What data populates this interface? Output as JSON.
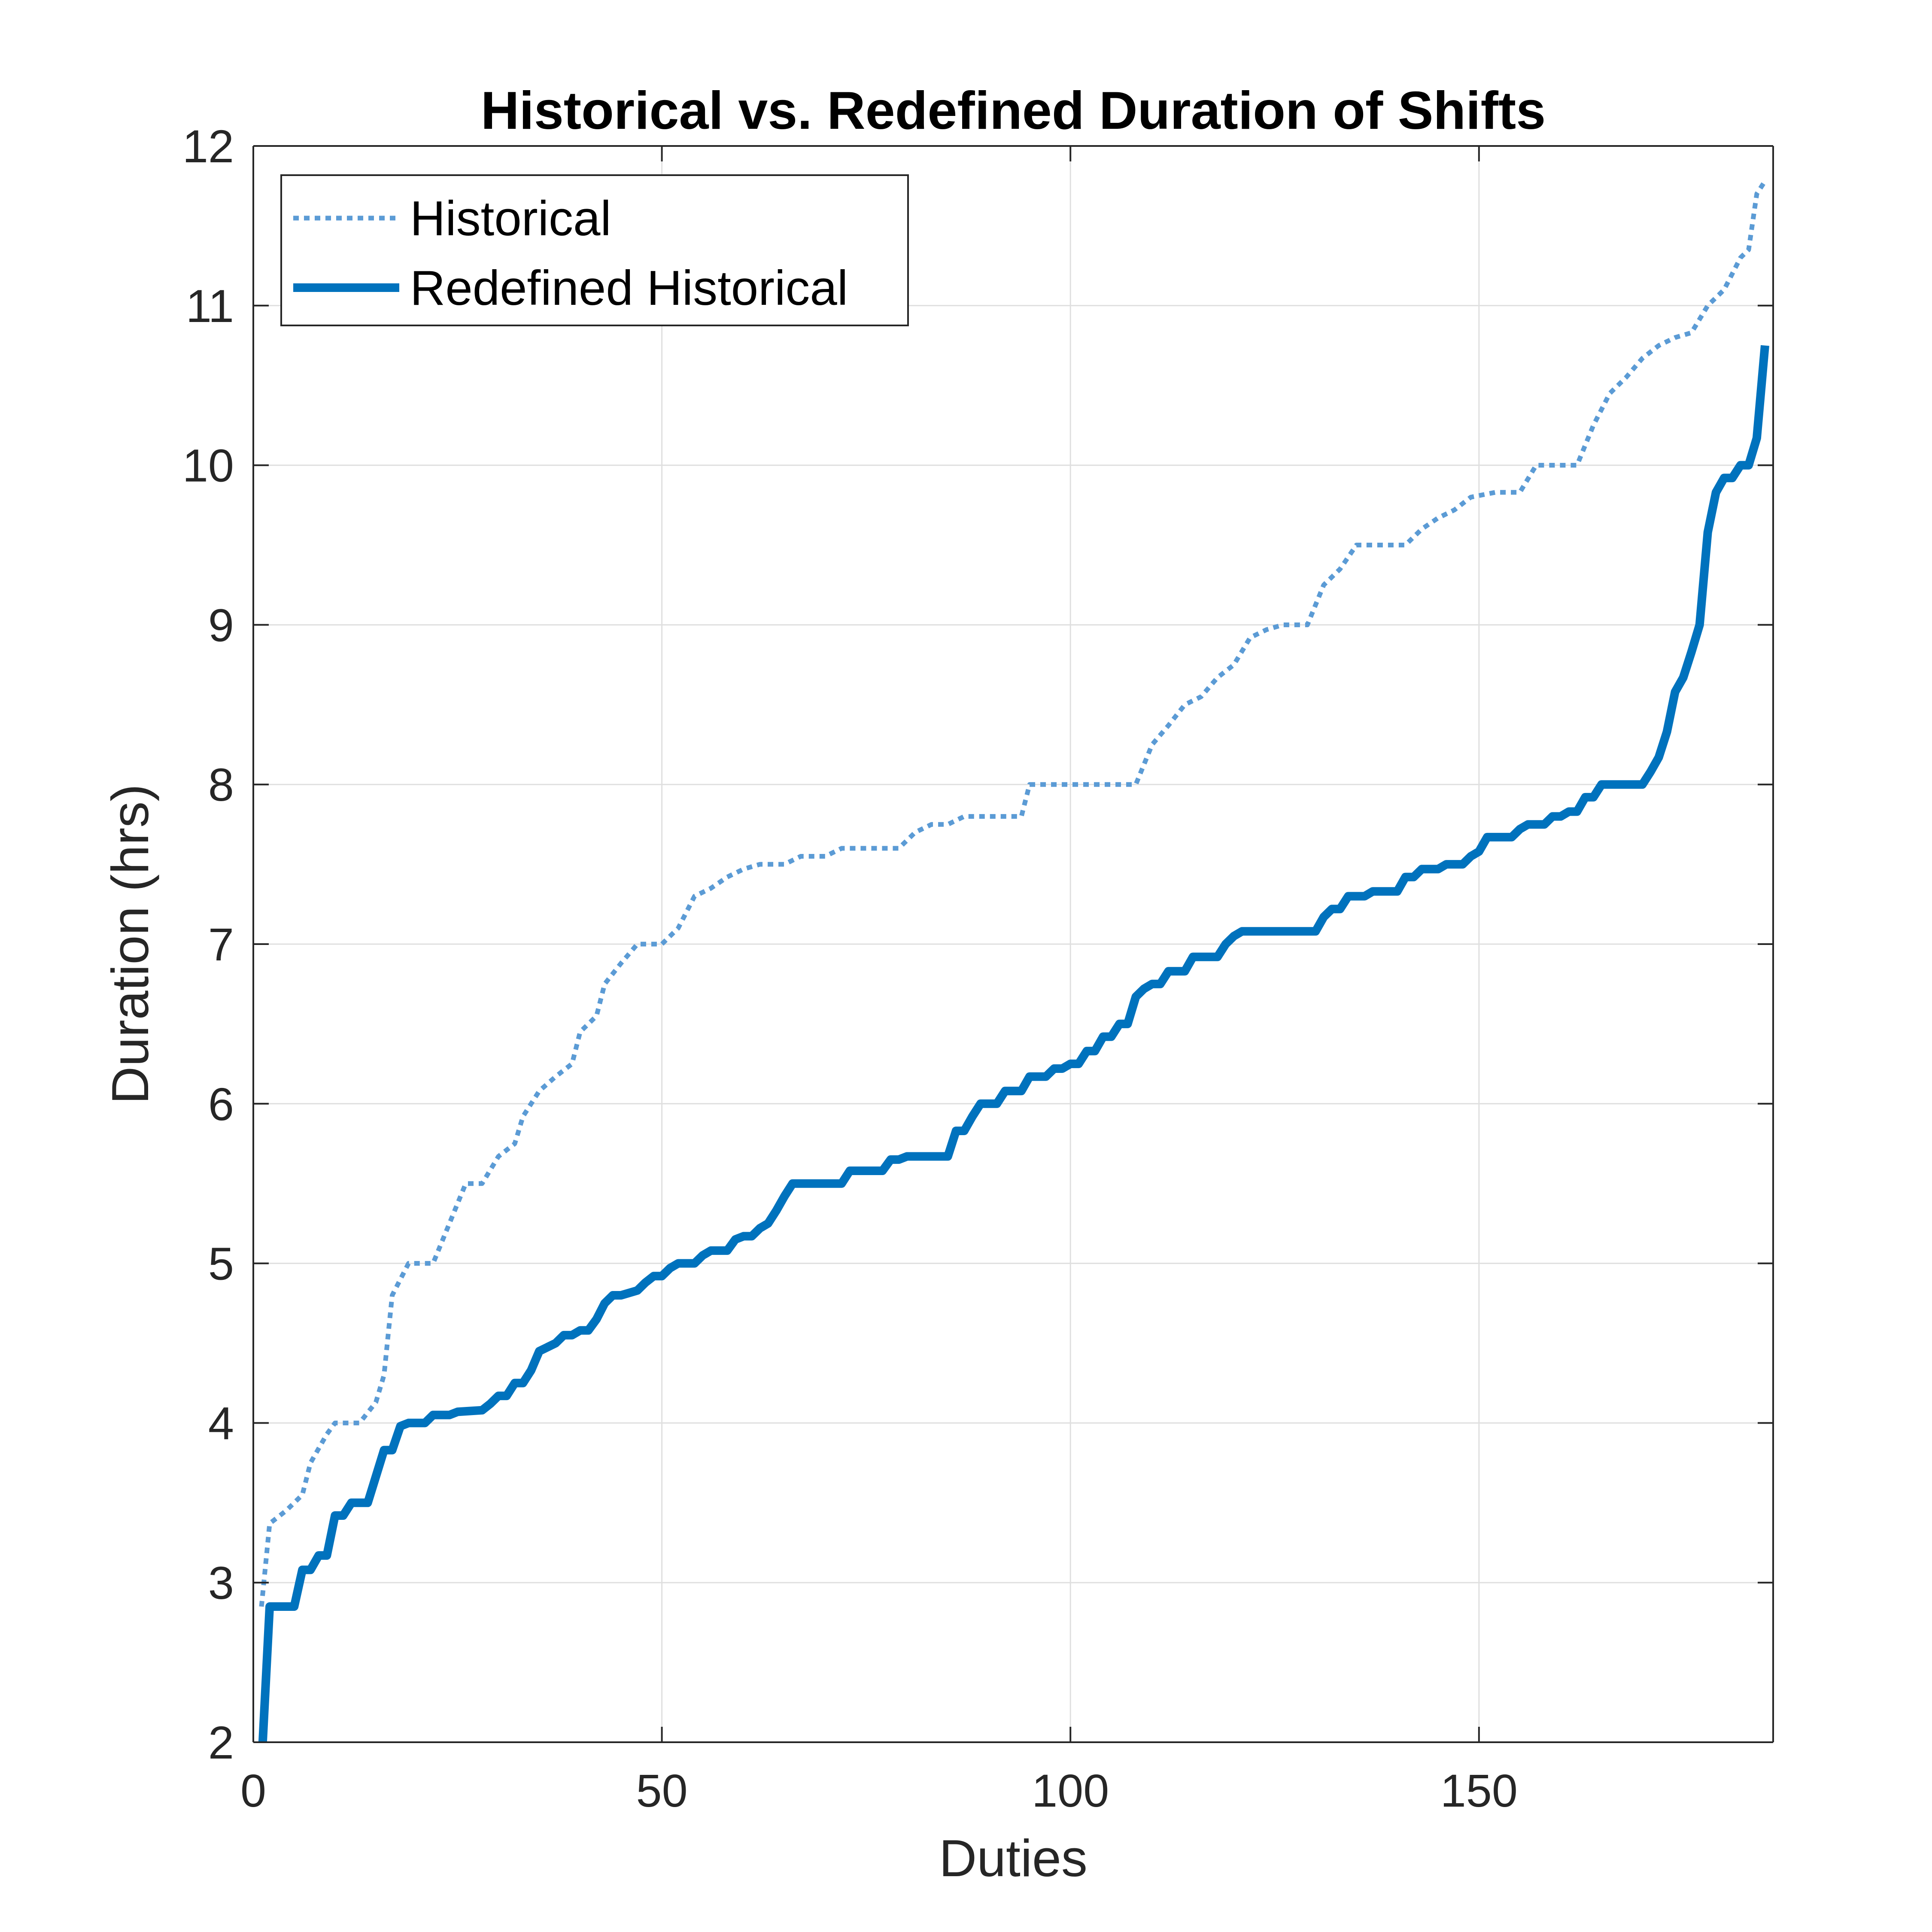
{
  "chart_data": {
    "type": "line",
    "title": "Historical vs. Redefined Duration of Shifts",
    "xlabel": "Duties",
    "ylabel": "Duration (hrs)",
    "xlim": [
      0,
      186
    ],
    "ylim": [
      2,
      12
    ],
    "xticks": [
      0,
      50,
      100,
      150
    ],
    "yticks": [
      2,
      3,
      4,
      5,
      6,
      7,
      8,
      9,
      10,
      11,
      12
    ],
    "grid": true,
    "legend_position": "top-left",
    "series": [
      {
        "name": "Historical",
        "color": "#5b9bd5",
        "style": "dotted",
        "points": [
          [
            1,
            2.85
          ],
          [
            2,
            3.37
          ],
          [
            4,
            3.45
          ],
          [
            6,
            3.55
          ],
          [
            7,
            3.75
          ],
          [
            9,
            3.93
          ],
          [
            10,
            4.0
          ],
          [
            13,
            4.0
          ],
          [
            15,
            4.13
          ],
          [
            16,
            4.3
          ],
          [
            17,
            4.8
          ],
          [
            19,
            5.0
          ],
          [
            22,
            5.0
          ],
          [
            24,
            5.25
          ],
          [
            26,
            5.5
          ],
          [
            28,
            5.5
          ],
          [
            30,
            5.67
          ],
          [
            32,
            5.75
          ],
          [
            33,
            5.92
          ],
          [
            35,
            6.08
          ],
          [
            37,
            6.17
          ],
          [
            39,
            6.25
          ],
          [
            40,
            6.45
          ],
          [
            42,
            6.55
          ],
          [
            43,
            6.75
          ],
          [
            45,
            6.88
          ],
          [
            47,
            7.0
          ],
          [
            50,
            7.0
          ],
          [
            52,
            7.1
          ],
          [
            54,
            7.3
          ],
          [
            56,
            7.35
          ],
          [
            58,
            7.42
          ],
          [
            60,
            7.47
          ],
          [
            62,
            7.5
          ],
          [
            65,
            7.5
          ],
          [
            67,
            7.55
          ],
          [
            70,
            7.55
          ],
          [
            72,
            7.6
          ],
          [
            79,
            7.6
          ],
          [
            81,
            7.7
          ],
          [
            83,
            7.75
          ],
          [
            85,
            7.75
          ],
          [
            87,
            7.8
          ],
          [
            94,
            7.8
          ],
          [
            95,
            8.0
          ],
          [
            108,
            8.0
          ],
          [
            110,
            8.25
          ],
          [
            112,
            8.37
          ],
          [
            114,
            8.5
          ],
          [
            116,
            8.55
          ],
          [
            118,
            8.67
          ],
          [
            120,
            8.75
          ],
          [
            122,
            8.92
          ],
          [
            124,
            8.97
          ],
          [
            126,
            9.0
          ],
          [
            129,
            9.0
          ],
          [
            131,
            9.25
          ],
          [
            133,
            9.35
          ],
          [
            135,
            9.5
          ],
          [
            141,
            9.5
          ],
          [
            143,
            9.6
          ],
          [
            145,
            9.67
          ],
          [
            147,
            9.72
          ],
          [
            149,
            9.8
          ],
          [
            152,
            9.83
          ],
          [
            155,
            9.83
          ],
          [
            157,
            10.0
          ],
          [
            162,
            10.0
          ],
          [
            164,
            10.25
          ],
          [
            166,
            10.45
          ],
          [
            168,
            10.55
          ],
          [
            170,
            10.67
          ],
          [
            172,
            10.75
          ],
          [
            174,
            10.8
          ],
          [
            176,
            10.83
          ],
          [
            178,
            11.0
          ],
          [
            180,
            11.1
          ],
          [
            182,
            11.3
          ],
          [
            183,
            11.35
          ],
          [
            184,
            11.7
          ],
          [
            185,
            11.78
          ]
        ]
      },
      {
        "name": "Redefined Historical",
        "color": "#0072bd",
        "style": "solid",
        "points": [
          [
            1,
            1.85
          ],
          [
            2,
            2.85
          ],
          [
            5,
            2.85
          ],
          [
            6,
            3.08
          ],
          [
            7,
            3.08
          ],
          [
            8,
            3.17
          ],
          [
            9,
            3.17
          ],
          [
            10,
            3.42
          ],
          [
            11,
            3.42
          ],
          [
            12,
            3.5
          ],
          [
            14,
            3.5
          ],
          [
            16,
            3.83
          ],
          [
            17,
            3.83
          ],
          [
            18,
            3.98
          ],
          [
            19,
            4.0
          ],
          [
            21,
            4.0
          ],
          [
            22,
            4.05
          ],
          [
            24,
            4.05
          ],
          [
            25,
            4.07
          ],
          [
            28,
            4.08
          ],
          [
            29,
            4.12
          ],
          [
            30,
            4.17
          ],
          [
            31,
            4.17
          ],
          [
            32,
            4.25
          ],
          [
            33,
            4.25
          ],
          [
            34,
            4.33
          ],
          [
            35,
            4.45
          ],
          [
            37,
            4.5
          ],
          [
            38,
            4.55
          ],
          [
            39,
            4.55
          ],
          [
            40,
            4.58
          ],
          [
            41,
            4.58
          ],
          [
            42,
            4.65
          ],
          [
            43,
            4.75
          ],
          [
            44,
            4.8
          ],
          [
            45,
            4.8
          ],
          [
            47,
            4.83
          ],
          [
            48,
            4.88
          ],
          [
            49,
            4.92
          ],
          [
            50,
            4.92
          ],
          [
            51,
            4.97
          ],
          [
            52,
            5.0
          ],
          [
            54,
            5.0
          ],
          [
            55,
            5.05
          ],
          [
            56,
            5.08
          ],
          [
            58,
            5.08
          ],
          [
            59,
            5.15
          ],
          [
            60,
            5.17
          ],
          [
            61,
            5.17
          ],
          [
            62,
            5.22
          ],
          [
            63,
            5.25
          ],
          [
            64,
            5.33
          ],
          [
            65,
            5.42
          ],
          [
            66,
            5.5
          ],
          [
            72,
            5.5
          ],
          [
            73,
            5.58
          ],
          [
            77,
            5.58
          ],
          [
            78,
            5.65
          ],
          [
            79,
            5.65
          ],
          [
            80,
            5.67
          ],
          [
            85,
            5.67
          ],
          [
            86,
            5.83
          ],
          [
            87,
            5.83
          ],
          [
            88,
            5.92
          ],
          [
            89,
            6.0
          ],
          [
            91,
            6.0
          ],
          [
            92,
            6.08
          ],
          [
            94,
            6.08
          ],
          [
            95,
            6.17
          ],
          [
            97,
            6.17
          ],
          [
            98,
            6.22
          ],
          [
            99,
            6.22
          ],
          [
            100,
            6.25
          ],
          [
            101,
            6.25
          ],
          [
            102,
            6.33
          ],
          [
            103,
            6.33
          ],
          [
            104,
            6.42
          ],
          [
            105,
            6.42
          ],
          [
            106,
            6.5
          ],
          [
            107,
            6.5
          ],
          [
            108,
            6.67
          ],
          [
            109,
            6.72
          ],
          [
            110,
            6.75
          ],
          [
            111,
            6.75
          ],
          [
            112,
            6.83
          ],
          [
            114,
            6.83
          ],
          [
            115,
            6.92
          ],
          [
            118,
            6.92
          ],
          [
            119,
            7.0
          ],
          [
            120,
            7.05
          ],
          [
            121,
            7.08
          ],
          [
            130,
            7.08
          ],
          [
            131,
            7.17
          ],
          [
            132,
            7.22
          ],
          [
            133,
            7.22
          ],
          [
            134,
            7.3
          ],
          [
            136,
            7.3
          ],
          [
            137,
            7.33
          ],
          [
            140,
            7.33
          ],
          [
            141,
            7.42
          ],
          [
            142,
            7.42
          ],
          [
            143,
            7.47
          ],
          [
            145,
            7.47
          ],
          [
            146,
            7.5
          ],
          [
            148,
            7.5
          ],
          [
            149,
            7.55
          ],
          [
            150,
            7.58
          ],
          [
            151,
            7.67
          ],
          [
            154,
            7.67
          ],
          [
            155,
            7.72
          ],
          [
            156,
            7.75
          ],
          [
            158,
            7.75
          ],
          [
            159,
            7.8
          ],
          [
            160,
            7.8
          ],
          [
            161,
            7.83
          ],
          [
            162,
            7.83
          ],
          [
            163,
            7.92
          ],
          [
            164,
            7.92
          ],
          [
            165,
            8.0
          ],
          [
            170,
            8.0
          ],
          [
            171,
            8.08
          ],
          [
            172,
            8.17
          ],
          [
            173,
            8.33
          ],
          [
            174,
            8.58
          ],
          [
            175,
            8.67
          ],
          [
            176,
            8.83
          ],
          [
            177,
            9.0
          ],
          [
            178,
            9.58
          ],
          [
            179,
            9.83
          ],
          [
            180,
            9.92
          ],
          [
            181,
            9.92
          ],
          [
            182,
            10.0
          ],
          [
            183,
            10.0
          ],
          [
            184,
            10.17
          ],
          [
            185,
            10.75
          ]
        ]
      }
    ]
  }
}
